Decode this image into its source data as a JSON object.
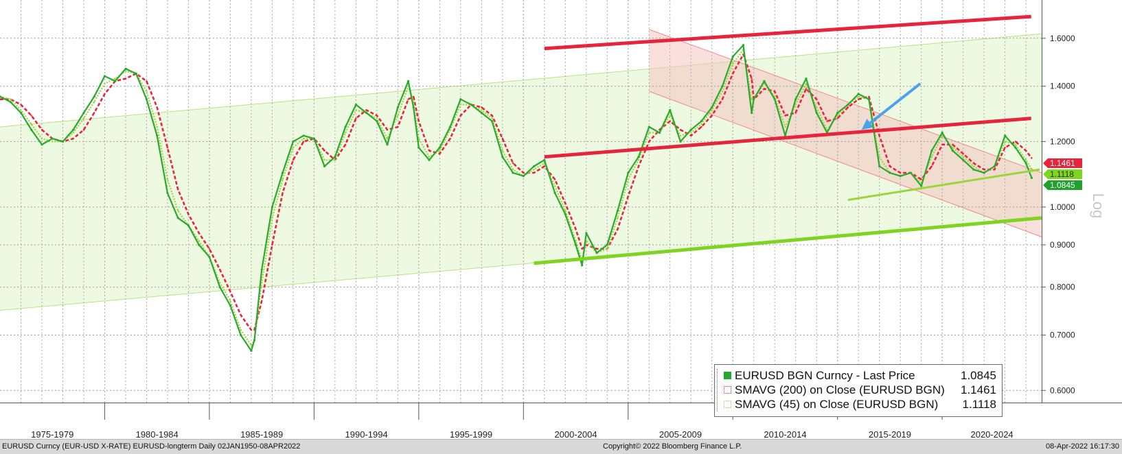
{
  "chart_data": {
    "type": "line",
    "y_scale": "log",
    "ylim": [
      0.58,
      1.78
    ],
    "xlim": [
      1973.0,
      2022.75
    ],
    "y_ticks": [
      "0.6000",
      "0.7000",
      "0.8000",
      "0.9000",
      "1.0000",
      "1.2000",
      "1.4000",
      "1.6000"
    ],
    "y_tick_values": [
      0.6,
      0.7,
      0.8,
      0.9,
      1.0,
      1.2,
      1.4,
      1.6
    ],
    "axis_scale_label": "Log",
    "x_categories": [
      "1975-1979",
      "1980-1984",
      "1985-1989",
      "1990-1994",
      "1995-1999",
      "2000-2004",
      "2005-2009",
      "2010-2014",
      "2015-2019",
      "2020-2024"
    ],
    "x_category_ranges": [
      [
        1973.0,
        1978.0
      ],
      [
        1978.0,
        1983.0
      ],
      [
        1983.0,
        1988.0
      ],
      [
        1988.0,
        1993.0
      ],
      [
        1993.0,
        1998.0
      ],
      [
        1998.0,
        2003.0
      ],
      [
        2003.0,
        2008.0
      ],
      [
        2008.0,
        2013.0
      ],
      [
        2013.0,
        2018.0
      ],
      [
        2018.0,
        2022.75
      ]
    ],
    "grid": true,
    "legend_position": "bottom-right",
    "price_tags": [
      {
        "label": "1.1461",
        "value": 1.1461,
        "color": "#e8243c"
      },
      {
        "label": "1.1118",
        "value": 1.1118,
        "color": "#7fd321"
      },
      {
        "label": "1.0845",
        "value": 1.0845,
        "color": "#1fa12e"
      }
    ],
    "series": [
      {
        "name": "EURUSD BGN Curncy - Last Price",
        "last_value": "1.0845",
        "color": "#2aa82e",
        "x": [
          1973.0,
          1973.5,
          1974.0,
          1974.5,
          1975.0,
          1975.5,
          1976.0,
          1976.5,
          1977.0,
          1977.5,
          1978.0,
          1978.5,
          1979.0,
          1979.5,
          1980.0,
          1980.5,
          1981.0,
          1981.5,
          1982.0,
          1982.5,
          1983.0,
          1983.5,
          1984.0,
          1984.5,
          1985.0,
          1985.15,
          1985.5,
          1986.0,
          1986.5,
          1987.0,
          1987.5,
          1988.0,
          1988.5,
          1989.0,
          1989.5,
          1990.0,
          1990.5,
          1991.0,
          1991.5,
          1992.0,
          1992.5,
          1992.75,
          1993.0,
          1993.5,
          1994.0,
          1994.5,
          1995.0,
          1995.5,
          1996.0,
          1996.5,
          1997.0,
          1997.5,
          1998.0,
          1998.5,
          1999.0,
          1999.5,
          2000.0,
          2000.5,
          2000.8,
          2001.0,
          2001.5,
          2002.0,
          2002.5,
          2003.0,
          2003.5,
          2004.0,
          2004.5,
          2005.0,
          2005.5,
          2006.0,
          2006.5,
          2007.0,
          2007.5,
          2008.0,
          2008.5,
          2008.9,
          2009.0,
          2009.5,
          2010.0,
          2010.5,
          2011.0,
          2011.5,
          2012.0,
          2012.5,
          2013.0,
          2013.5,
          2014.0,
          2014.5,
          2015.0,
          2015.5,
          2016.0,
          2016.5,
          2017.0,
          2017.5,
          2018.0,
          2018.5,
          2019.0,
          2019.5,
          2020.0,
          2020.5,
          2021.0,
          2021.5,
          2022.0,
          2022.27
        ],
        "values": [
          1.36,
          1.34,
          1.3,
          1.24,
          1.19,
          1.21,
          1.2,
          1.24,
          1.3,
          1.36,
          1.44,
          1.42,
          1.47,
          1.45,
          1.35,
          1.22,
          1.04,
          0.97,
          0.95,
          0.9,
          0.87,
          0.8,
          0.76,
          0.7,
          0.67,
          0.69,
          0.84,
          1.0,
          1.1,
          1.2,
          1.22,
          1.21,
          1.12,
          1.15,
          1.25,
          1.33,
          1.3,
          1.27,
          1.19,
          1.32,
          1.42,
          1.32,
          1.18,
          1.14,
          1.18,
          1.25,
          1.35,
          1.33,
          1.3,
          1.27,
          1.15,
          1.1,
          1.09,
          1.12,
          1.14,
          1.04,
          0.98,
          0.9,
          0.85,
          0.93,
          0.88,
          0.9,
          0.99,
          1.1,
          1.15,
          1.25,
          1.23,
          1.31,
          1.2,
          1.24,
          1.27,
          1.32,
          1.4,
          1.52,
          1.57,
          1.3,
          1.35,
          1.42,
          1.35,
          1.22,
          1.35,
          1.43,
          1.3,
          1.23,
          1.3,
          1.33,
          1.37,
          1.35,
          1.12,
          1.1,
          1.09,
          1.1,
          1.06,
          1.17,
          1.23,
          1.17,
          1.14,
          1.11,
          1.1,
          1.12,
          1.22,
          1.18,
          1.13,
          1.0845
        ]
      },
      {
        "name": "SMAVG (200)  on Close (EURUSD BGN)",
        "last_value": "1.1461",
        "color": "#e8243c",
        "x": [
          1973.0,
          1973.5,
          1974.0,
          1974.5,
          1975.0,
          1975.5,
          1976.0,
          1976.5,
          1977.0,
          1977.5,
          1978.0,
          1978.5,
          1979.0,
          1979.5,
          1980.0,
          1980.5,
          1981.0,
          1981.5,
          1982.0,
          1982.5,
          1983.0,
          1983.5,
          1984.0,
          1984.5,
          1985.0,
          1985.15,
          1985.5,
          1986.0,
          1986.5,
          1987.0,
          1987.5,
          1988.0,
          1988.5,
          1989.0,
          1989.5,
          1990.0,
          1990.5,
          1991.0,
          1991.5,
          1992.0,
          1992.5,
          1992.75,
          1993.0,
          1993.5,
          1994.0,
          1994.5,
          1995.0,
          1995.5,
          1996.0,
          1996.5,
          1997.0,
          1997.5,
          1998.0,
          1998.5,
          1999.0,
          1999.5,
          2000.0,
          2000.5,
          2000.8,
          2001.0,
          2001.5,
          2002.0,
          2002.5,
          2003.0,
          2003.5,
          2004.0,
          2004.5,
          2005.0,
          2005.5,
          2006.0,
          2006.5,
          2007.0,
          2007.5,
          2008.0,
          2008.5,
          2008.9,
          2009.0,
          2009.5,
          2010.0,
          2010.5,
          2011.0,
          2011.5,
          2012.0,
          2012.5,
          2013.0,
          2013.5,
          2014.0,
          2014.5,
          2015.0,
          2015.5,
          2016.0,
          2016.5,
          2017.0,
          2017.5,
          2018.0,
          2018.5,
          2019.0,
          2019.5,
          2020.0,
          2020.5,
          2021.0,
          2021.5,
          2022.0,
          2022.27
        ],
        "values": [
          1.35,
          1.35,
          1.33,
          1.29,
          1.24,
          1.21,
          1.2,
          1.21,
          1.24,
          1.3,
          1.37,
          1.42,
          1.43,
          1.45,
          1.42,
          1.32,
          1.18,
          1.05,
          0.98,
          0.93,
          0.89,
          0.84,
          0.79,
          0.74,
          0.71,
          0.71,
          0.77,
          0.9,
          1.04,
          1.14,
          1.2,
          1.21,
          1.17,
          1.14,
          1.19,
          1.28,
          1.31,
          1.29,
          1.24,
          1.25,
          1.35,
          1.36,
          1.27,
          1.17,
          1.16,
          1.21,
          1.29,
          1.33,
          1.32,
          1.29,
          1.21,
          1.13,
          1.1,
          1.1,
          1.12,
          1.08,
          1.01,
          0.94,
          0.89,
          0.9,
          0.89,
          0.89,
          0.94,
          1.03,
          1.12,
          1.2,
          1.24,
          1.27,
          1.24,
          1.22,
          1.25,
          1.29,
          1.35,
          1.45,
          1.53,
          1.43,
          1.35,
          1.39,
          1.38,
          1.29,
          1.3,
          1.39,
          1.35,
          1.27,
          1.28,
          1.32,
          1.35,
          1.36,
          1.22,
          1.12,
          1.1,
          1.1,
          1.08,
          1.12,
          1.19,
          1.19,
          1.16,
          1.13,
          1.11,
          1.11,
          1.18,
          1.2,
          1.17,
          1.1461
        ]
      },
      {
        "name": "SMAVG (45)  on Close (EURUSD BGN)",
        "last_value": "1.1118",
        "color": "#9ad638",
        "x": [
          1973.0,
          1973.5,
          1974.0,
          1974.5,
          1975.0,
          1975.5,
          1976.0,
          1976.5,
          1977.0,
          1977.5,
          1978.0,
          1978.5,
          1979.0,
          1979.5,
          1980.0,
          1980.5,
          1981.0,
          1981.5,
          1982.0,
          1982.5,
          1983.0,
          1983.5,
          1984.0,
          1984.5,
          1985.0,
          1985.15,
          1985.5,
          1986.0,
          1986.5,
          1987.0,
          1987.5,
          1988.0,
          1988.5,
          1989.0,
          1989.5,
          1990.0,
          1990.5,
          1991.0,
          1991.5,
          1992.0,
          1992.5,
          1992.75,
          1993.0,
          1993.5,
          1994.0,
          1994.5,
          1995.0,
          1995.5,
          1996.0,
          1996.5,
          1997.0,
          1997.5,
          1998.0,
          1998.5,
          1999.0,
          1999.5,
          2000.0,
          2000.5,
          2000.8,
          2001.0,
          2001.5,
          2002.0,
          2002.5,
          2003.0,
          2003.5,
          2004.0,
          2004.5,
          2005.0,
          2005.5,
          2006.0,
          2006.5,
          2007.0,
          2007.5,
          2008.0,
          2008.5,
          2008.9,
          2009.0,
          2009.5,
          2010.0,
          2010.5,
          2011.0,
          2011.5,
          2012.0,
          2012.5,
          2013.0,
          2013.5,
          2014.0,
          2014.5,
          2015.0,
          2015.5,
          2016.0,
          2016.5,
          2017.0,
          2017.5,
          2018.0,
          2018.5,
          2019.0,
          2019.5,
          2020.0,
          2020.5,
          2021.0,
          2021.5,
          2022.0,
          2022.27
        ],
        "values": [
          1.36,
          1.35,
          1.31,
          1.26,
          1.21,
          1.2,
          1.2,
          1.23,
          1.28,
          1.34,
          1.41,
          1.43,
          1.46,
          1.45,
          1.38,
          1.25,
          1.08,
          0.99,
          0.95,
          0.91,
          0.87,
          0.81,
          0.77,
          0.71,
          0.68,
          0.69,
          0.81,
          0.97,
          1.08,
          1.18,
          1.21,
          1.21,
          1.14,
          1.14,
          1.23,
          1.31,
          1.3,
          1.28,
          1.21,
          1.29,
          1.4,
          1.34,
          1.21,
          1.15,
          1.17,
          1.24,
          1.33,
          1.33,
          1.31,
          1.28,
          1.17,
          1.11,
          1.09,
          1.11,
          1.13,
          1.06,
          0.99,
          0.91,
          0.86,
          0.91,
          0.88,
          0.89,
          0.97,
          1.08,
          1.14,
          1.23,
          1.23,
          1.29,
          1.22,
          1.23,
          1.26,
          1.31,
          1.38,
          1.49,
          1.55,
          1.35,
          1.35,
          1.41,
          1.36,
          1.25,
          1.33,
          1.41,
          1.32,
          1.24,
          1.29,
          1.33,
          1.36,
          1.35,
          1.15,
          1.1,
          1.09,
          1.1,
          1.07,
          1.15,
          1.22,
          1.18,
          1.15,
          1.12,
          1.1,
          1.12,
          1.2,
          1.19,
          1.14,
          1.1118
        ]
      }
    ],
    "annotations": {
      "long_term_channel": {
        "color": "#7fd321",
        "lower": [
          [
            1973.0,
            0.75
          ],
          [
            2022.75,
            0.97
          ]
        ],
        "upper": [
          [
            1973.0,
            1.25
          ],
          [
            2022.75,
            1.62
          ]
        ]
      },
      "green_support_line": {
        "color": "#7fd321",
        "points": [
          [
            1998.5,
            0.855
          ],
          [
            2022.75,
            0.97
          ]
        ]
      },
      "red_resistance_top": {
        "color": "#e8243c",
        "points": [
          [
            1999.0,
            1.555
          ],
          [
            2022.25,
            1.7
          ]
        ]
      },
      "red_support_mid": {
        "color": "#e8243c",
        "points": [
          [
            1999.0,
            1.15
          ],
          [
            2022.25,
            1.28
          ]
        ]
      },
      "short_green_line": {
        "color": "#9ad638",
        "points": [
          [
            2013.5,
            1.02
          ],
          [
            2022.65,
            1.11
          ]
        ]
      },
      "down_channel": {
        "color": "#f4c6c0",
        "upper": [
          [
            2004.0,
            1.64
          ],
          [
            2022.75,
            1.1
          ]
        ],
        "lower": [
          [
            2004.0,
            1.38
          ],
          [
            2022.75,
            0.92
          ]
        ]
      },
      "blue_arrow": {
        "color": "#4aa3e6",
        "from": [
          2016.95,
          1.41
        ],
        "to": [
          2014.15,
          1.24
        ]
      }
    }
  },
  "legend": {
    "items": [
      {
        "label": "EURUSD BGN Curncy - Last Price",
        "value": "1.0845",
        "symbol": "solid",
        "color": "#22a82a"
      },
      {
        "label": "SMAVG (200)  on Close (EURUSD BGN)",
        "value": "1.1461",
        "symbol": "dotted",
        "color": "#e8243c"
      },
      {
        "label": "SMAVG (45)  on Close (EURUSD BGN)",
        "value": "1.1118",
        "symbol": "dotted",
        "color": "#9ad638"
      }
    ]
  },
  "footer": {
    "left": "EURUSD Curncy (EUR-USD X-RATE) EURUSD-longterm  Daily 02JAN1950-08APR2022",
    "center": "Copyright© 2022 Bloomberg Finance L.P.",
    "right": "08-Apr-2022 16:17:30"
  }
}
